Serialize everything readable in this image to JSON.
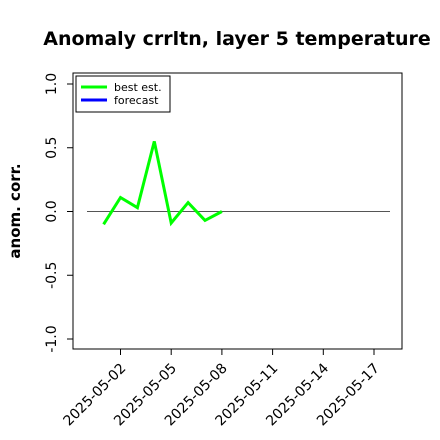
{
  "chart_data": {
    "type": "line",
    "title": "Anomaly crrltn, layer 5 temperature",
    "xlabel": "",
    "ylabel": "anom. corr.",
    "ylim": [
      -1.0,
      1.0
    ],
    "yticks": [
      "-1.0",
      "-0.5",
      "0.0",
      "0.5",
      "1.0"
    ],
    "xticks": [
      "2025-05-02",
      "2025-05-05",
      "2025-05-08",
      "2025-05-11",
      "2025-05-14",
      "2025-05-17"
    ],
    "highlighted_xtick": "2025-05-08",
    "highlight_color": "#228B22",
    "reference_line_y": 0.0,
    "legend": {
      "position": "top-left",
      "entries": [
        "best est.",
        "forecast"
      ]
    },
    "series": [
      {
        "name": "best est.",
        "color": "#00ff00",
        "x": [
          "2025-05-01",
          "2025-05-02",
          "2025-05-03",
          "2025-05-04",
          "2025-05-05",
          "2025-05-06",
          "2025-05-07",
          "2025-05-08"
        ],
        "y": [
          -0.1,
          0.11,
          0.03,
          0.55,
          -0.09,
          0.07,
          -0.07,
          0.0
        ]
      },
      {
        "name": "forecast",
        "color": "#0000ff",
        "x": [],
        "y": []
      }
    ]
  }
}
